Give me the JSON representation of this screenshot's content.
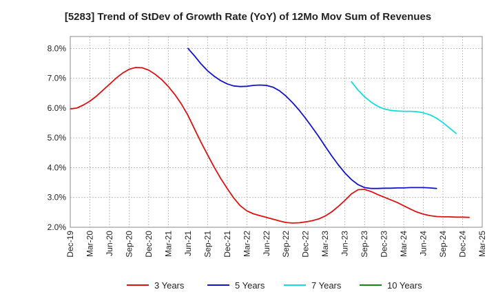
{
  "chart_data": {
    "type": "line",
    "title": "[5283]  Trend of StDev of Growth Rate (YoY) of 12Mo Mov Sum of Revenues",
    "xlabel": "",
    "ylabel": "",
    "x_tick_labels": [
      "Dec-19",
      "Mar-20",
      "Jun-20",
      "Sep-20",
      "Dec-20",
      "Mar-21",
      "Jun-21",
      "Sep-21",
      "Dec-21",
      "Mar-22",
      "Jun-22",
      "Sep-22",
      "Dec-22",
      "Mar-23",
      "Jun-23",
      "Sep-23",
      "Dec-23",
      "Mar-24",
      "Jun-24",
      "Sep-24",
      "Dec-24",
      "Mar-25"
    ],
    "y_tick_labels": [
      "2.0%",
      "3.0%",
      "4.0%",
      "5.0%",
      "6.0%",
      "7.0%",
      "8.0%"
    ],
    "ylim": [
      2.0,
      8.4
    ],
    "grid": true,
    "legend_position": "bottom",
    "series": [
      {
        "name": "3 Years",
        "color": "#dd1111",
        "start_index": 0,
        "values": [
          5.97,
          6.0,
          6.1,
          6.23,
          6.4,
          6.6,
          6.8,
          7.0,
          7.17,
          7.3,
          7.36,
          7.35,
          7.27,
          7.13,
          6.95,
          6.72,
          6.45,
          6.13,
          5.75,
          5.3,
          4.85,
          4.43,
          4.02,
          3.64,
          3.3,
          2.98,
          2.72,
          2.55,
          2.45,
          2.39,
          2.33,
          2.27,
          2.21,
          2.16,
          2.14,
          2.15,
          2.18,
          2.22,
          2.28,
          2.38,
          2.52,
          2.7,
          2.9,
          3.12,
          3.26,
          3.27,
          3.2,
          3.1,
          3.01,
          2.92,
          2.83,
          2.72,
          2.61,
          2.51,
          2.44,
          2.39,
          2.36,
          2.35,
          2.35,
          2.34,
          2.34,
          2.33
        ]
      },
      {
        "name": "5 Years",
        "color": "#1111cc",
        "start_index": 18,
        "values": [
          8.0,
          7.75,
          7.48,
          7.25,
          7.07,
          6.92,
          6.81,
          6.74,
          6.72,
          6.73,
          6.76,
          6.77,
          6.76,
          6.7,
          6.58,
          6.4,
          6.18,
          5.93,
          5.65,
          5.35,
          5.04,
          4.71,
          4.39,
          4.09,
          3.82,
          3.6,
          3.43,
          3.33,
          3.3,
          3.3,
          3.31,
          3.31,
          3.32,
          3.32,
          3.33,
          3.33,
          3.33,
          3.32,
          3.3
        ]
      },
      {
        "name": "7 Years",
        "color": "#11dddd",
        "start_index": 43,
        "values": [
          6.88,
          6.6,
          6.38,
          6.2,
          6.06,
          5.97,
          5.92,
          5.9,
          5.89,
          5.89,
          5.88,
          5.84,
          5.77,
          5.66,
          5.51,
          5.33,
          5.15
        ]
      },
      {
        "name": "10 Years",
        "color": "#118811",
        "start_index": 0,
        "values": []
      }
    ]
  }
}
